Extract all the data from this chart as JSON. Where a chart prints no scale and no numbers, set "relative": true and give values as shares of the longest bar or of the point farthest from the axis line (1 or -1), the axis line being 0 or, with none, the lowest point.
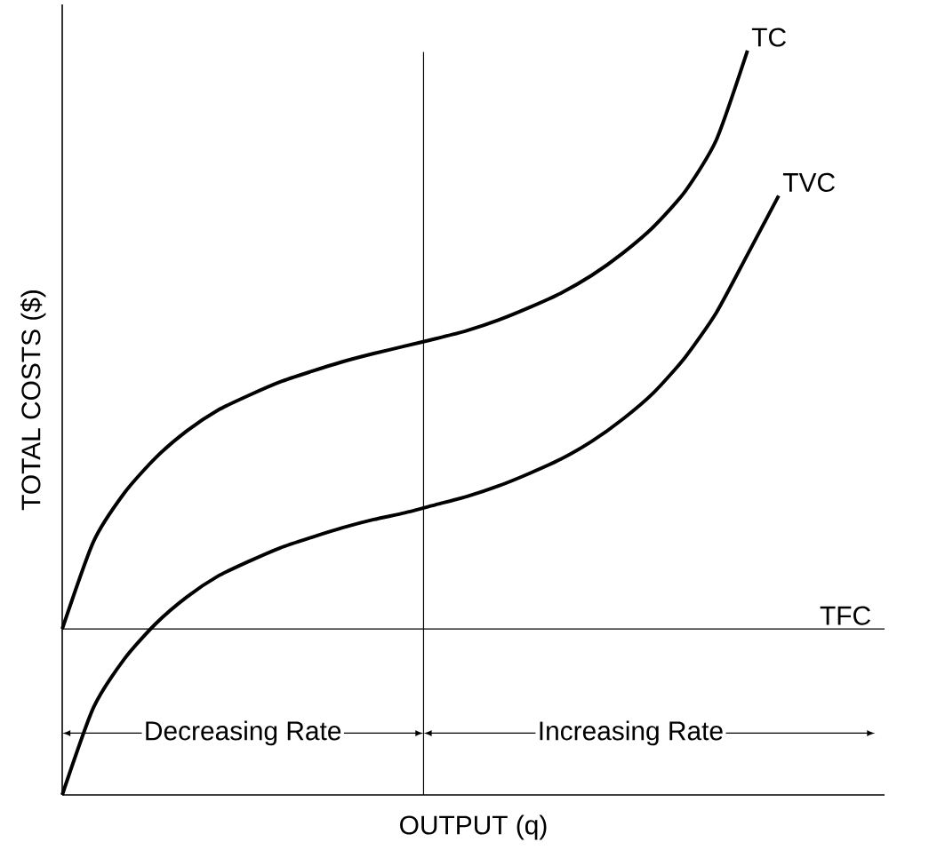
{
  "chart_data": {
    "type": "line",
    "relative": true,
    "xlabel": "OUTPUT (q)",
    "ylabel": "TOTAL COSTS ($)",
    "categories": [
      null,
      null,
      null,
      null,
      null,
      null,
      null,
      null,
      null,
      null,
      null,
      null,
      null,
      null,
      null,
      null,
      null,
      null,
      null,
      null,
      null,
      null,
      null,
      null
    ],
    "series": [
      {
        "name": "TC",
        "color": "#000000",
        "values": [
          0.223,
          0.34,
          0.406,
          0.453,
          0.489,
          0.517,
          0.537,
          0.555,
          0.569,
          0.582,
          0.593,
          0.603,
          0.613,
          0.624,
          0.638,
          0.655,
          0.674,
          0.698,
          0.728,
          0.764,
          0.811,
          0.88,
          1.0,
          null
        ]
      },
      {
        "name": "TVC",
        "color": "#000000",
        "values": [
          0,
          0.117,
          0.183,
          0.23,
          0.266,
          0.294,
          0.314,
          0.332,
          0.346,
          0.359,
          0.37,
          0.379,
          0.39,
          0.401,
          0.415,
          0.432,
          0.451,
          0.475,
          0.505,
          0.541,
          0.588,
          0.648,
          0.726,
          0.805
        ]
      }
    ],
    "ref_lines": [
      {
        "axis": "y",
        "value": 0.223,
        "label": "TFC"
      }
    ],
    "annotations": [
      "Decreasing Rate",
      "Increasing Rate"
    ],
    "marker": "none",
    "line_style": "solid"
  }
}
